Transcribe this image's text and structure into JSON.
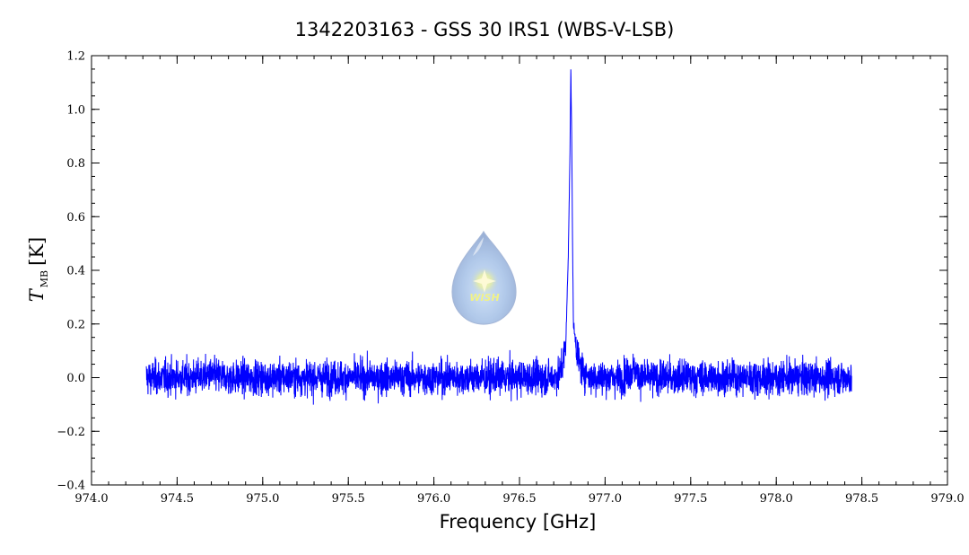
{
  "chart_data": {
    "type": "line",
    "title": "1342203163 - GSS 30 IRS1 (WBS-V-LSB)",
    "xlabel": "Frequency [GHz]",
    "ylabel_symbol": "T",
    "ylabel_subscript": "MB",
    "ylabel_unit": "[K]",
    "xlim": [
      974.0,
      979.0
    ],
    "ylim": [
      -0.4,
      1.2
    ],
    "x_ticks": [
      974.0,
      974.5,
      975.0,
      975.5,
      976.0,
      976.5,
      977.0,
      977.5,
      978.0,
      978.5,
      979.0
    ],
    "x_tick_labels": [
      "974.0",
      "974.5",
      "975.0",
      "975.5",
      "976.0",
      "976.5",
      "977.0",
      "977.5",
      "978.0",
      "978.5",
      "979.0"
    ],
    "y_ticks": [
      -0.4,
      -0.2,
      0.0,
      0.2,
      0.4,
      0.6,
      0.8,
      1.0,
      1.2
    ],
    "y_tick_labels": [
      "−0.4",
      "−0.2",
      "0.0",
      "0.2",
      "0.4",
      "0.6",
      "0.8",
      "1.0",
      "1.2"
    ],
    "grid": false,
    "color": "#0000ff",
    "series": [
      {
        "x": [
          974.32,
          974.4,
          974.5,
          974.6,
          974.7,
          974.8,
          974.9,
          975.0,
          975.1,
          975.2,
          975.3,
          975.4,
          975.5,
          975.6,
          975.7,
          975.8,
          975.9,
          976.0,
          976.1,
          976.2,
          976.3,
          976.4,
          976.5,
          976.6,
          976.7,
          976.74,
          976.77,
          976.785,
          976.795,
          976.8,
          976.805,
          976.81,
          976.815,
          976.83,
          976.85,
          976.88,
          976.92,
          977.0,
          977.1,
          977.17,
          977.2,
          977.3,
          977.4,
          977.5,
          977.6,
          977.7,
          977.8,
          977.9,
          978.0,
          978.1,
          978.2,
          978.3,
          978.44
        ],
        "values": [
          0.0,
          0.0,
          0.0,
          0.0,
          0.01,
          0.0,
          0.0,
          0.0,
          0.0,
          0.0,
          0.0,
          0.0,
          0.0,
          0.0,
          0.0,
          0.0,
          0.0,
          0.0,
          0.0,
          0.0,
          0.0,
          0.0,
          0.0,
          0.0,
          0.0,
          0.02,
          0.12,
          0.45,
          0.85,
          1.15,
          0.9,
          0.5,
          0.2,
          0.12,
          0.05,
          0.02,
          0.0,
          0.0,
          0.0,
          0.03,
          0.0,
          0.0,
          0.0,
          0.0,
          0.0,
          0.0,
          0.0,
          0.0,
          0.0,
          0.0,
          0.0,
          0.0,
          0.0
        ],
        "noise_rms": 0.045
      }
    ],
    "annotations": [
      {
        "type": "logo",
        "text": "WISH",
        "x": 976.31,
        "y": 0.36
      }
    ]
  }
}
